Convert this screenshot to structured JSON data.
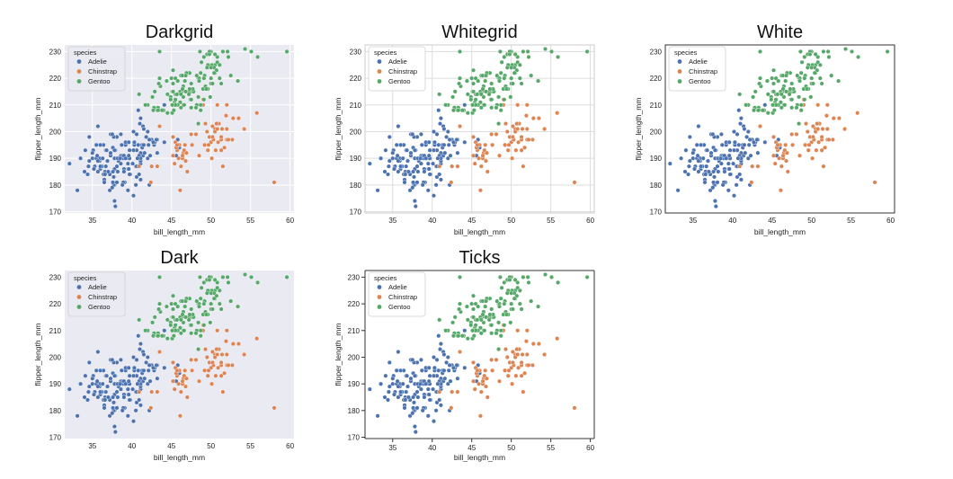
{
  "species_colors": {
    "Adelie": "#4c72b0",
    "Chinstrap": "#dd8452",
    "Gentoo": "#55a868"
  },
  "species": {
    "Adelie": [
      [
        39.1,
        181
      ],
      [
        39.5,
        186
      ],
      [
        40.3,
        195
      ],
      [
        36.7,
        193
      ],
      [
        39.3,
        190
      ],
      [
        38.9,
        181
      ],
      [
        39.2,
        195
      ],
      [
        34.1,
        193
      ],
      [
        42,
        190
      ],
      [
        37.8,
        186
      ],
      [
        37.8,
        180
      ],
      [
        41.1,
        182
      ],
      [
        38.6,
        191
      ],
      [
        34.6,
        198
      ],
      [
        36.6,
        185
      ],
      [
        38.7,
        195
      ],
      [
        42.5,
        197
      ],
      [
        34.4,
        184
      ],
      [
        46,
        194
      ],
      [
        37.8,
        174
      ],
      [
        37.7,
        180
      ],
      [
        35.9,
        189
      ],
      [
        38.2,
        185
      ],
      [
        38.8,
        180
      ],
      [
        35.3,
        187
      ],
      [
        40.6,
        183
      ],
      [
        40.5,
        187
      ],
      [
        37.9,
        172
      ],
      [
        40.5,
        180
      ],
      [
        39.5,
        178
      ],
      [
        37.2,
        178
      ],
      [
        39.5,
        188
      ],
      [
        40.9,
        184
      ],
      [
        36.4,
        195
      ],
      [
        39.2,
        196
      ],
      [
        38.8,
        190
      ],
      [
        42.2,
        180
      ],
      [
        37.6,
        181
      ],
      [
        39.8,
        184
      ],
      [
        36.5,
        182
      ],
      [
        40.8,
        195
      ],
      [
        36,
        186
      ],
      [
        44.1,
        196
      ],
      [
        37,
        185
      ],
      [
        39.6,
        190
      ],
      [
        41.1,
        182
      ],
      [
        37.5,
        179
      ],
      [
        42.3,
        191
      ],
      [
        39.6,
        186
      ],
      [
        40.1,
        188
      ],
      [
        35,
        190
      ],
      [
        42,
        200
      ],
      [
        34.5,
        187
      ],
      [
        41.4,
        191
      ],
      [
        39,
        186
      ],
      [
        40.6,
        193
      ],
      [
        36.5,
        181
      ],
      [
        37.6,
        194
      ],
      [
        35.7,
        185
      ],
      [
        41.3,
        195
      ],
      [
        37.6,
        185
      ],
      [
        41.1,
        192
      ],
      [
        36.4,
        184
      ],
      [
        41.6,
        192
      ],
      [
        35.5,
        195
      ],
      [
        41.1,
        188
      ],
      [
        35.9,
        190
      ],
      [
        41.8,
        198
      ],
      [
        33.5,
        190
      ],
      [
        39.7,
        190
      ],
      [
        39.6,
        196
      ],
      [
        45.8,
        197
      ],
      [
        35.5,
        190
      ],
      [
        42.8,
        195
      ],
      [
        40.9,
        191
      ],
      [
        37.2,
        184
      ],
      [
        36.2,
        187
      ],
      [
        42.1,
        195
      ],
      [
        34.6,
        189
      ],
      [
        42.9,
        196
      ],
      [
        36.7,
        187
      ],
      [
        35.1,
        193
      ],
      [
        37.3,
        191
      ],
      [
        41.3,
        194
      ],
      [
        36.3,
        190
      ],
      [
        36.9,
        189
      ],
      [
        38.3,
        189
      ],
      [
        38.9,
        190
      ],
      [
        35.7,
        202
      ],
      [
        41.1,
        205
      ],
      [
        34,
        185
      ],
      [
        39.6,
        186
      ],
      [
        36.2,
        187
      ],
      [
        40.8,
        208
      ],
      [
        38.1,
        190
      ],
      [
        40.3,
        196
      ],
      [
        33.1,
        178
      ],
      [
        43.2,
        192
      ],
      [
        35,
        192
      ],
      [
        41,
        203
      ],
      [
        37.7,
        183
      ],
      [
        37.8,
        190
      ],
      [
        37.9,
        193
      ],
      [
        39.7,
        184
      ],
      [
        38.6,
        199
      ],
      [
        38.2,
        190
      ],
      [
        38.1,
        181
      ],
      [
        43.2,
        197
      ],
      [
        38.1,
        198
      ],
      [
        45.6,
        191
      ],
      [
        39.7,
        193
      ],
      [
        42.2,
        197
      ],
      [
        39.6,
        191
      ],
      [
        42.7,
        196
      ],
      [
        38.6,
        188
      ],
      [
        37.3,
        199
      ],
      [
        35.7,
        189
      ],
      [
        41.1,
        189
      ],
      [
        36.2,
        187
      ],
      [
        37.7,
        198
      ],
      [
        40.2,
        176
      ],
      [
        41.4,
        202
      ],
      [
        35.2,
        186
      ],
      [
        40.6,
        199
      ],
      [
        38.8,
        191
      ],
      [
        41.5,
        195
      ],
      [
        39,
        191
      ],
      [
        44.1,
        210
      ],
      [
        38.5,
        190
      ],
      [
        43.1,
        197
      ],
      [
        36.8,
        193
      ],
      [
        37.5,
        199
      ],
      [
        38.1,
        187
      ],
      [
        41.1,
        190
      ],
      [
        35.6,
        191
      ],
      [
        40.2,
        200
      ],
      [
        37,
        185
      ],
      [
        39.7,
        193
      ],
      [
        40.2,
        193
      ],
      [
        40.6,
        187
      ],
      [
        32.1,
        188
      ],
      [
        40.7,
        190
      ],
      [
        37.3,
        192
      ],
      [
        39,
        185
      ],
      [
        39.2,
        190
      ],
      [
        36.6,
        184
      ],
      [
        36,
        195
      ],
      [
        37.8,
        193
      ],
      [
        36,
        187
      ],
      [
        41.5,
        201
      ]
    ],
    "Chinstrap": [
      [
        46.5,
        192
      ],
      [
        50,
        196
      ],
      [
        51.3,
        193
      ],
      [
        45.4,
        188
      ],
      [
        52.7,
        197
      ],
      [
        45.2,
        198
      ],
      [
        46.1,
        178
      ],
      [
        51.3,
        197
      ],
      [
        46,
        195
      ],
      [
        51.3,
        198
      ],
      [
        46.6,
        193
      ],
      [
        51.7,
        194
      ],
      [
        47,
        185
      ],
      [
        52,
        201
      ],
      [
        45.9,
        190
      ],
      [
        50.5,
        201
      ],
      [
        50.3,
        197
      ],
      [
        58,
        181
      ],
      [
        46.4,
        190
      ],
      [
        49.2,
        195
      ],
      [
        42.4,
        181
      ],
      [
        48.5,
        191
      ],
      [
        43.2,
        187
      ],
      [
        50.6,
        193
      ],
      [
        46.7,
        195
      ],
      [
        52,
        197
      ],
      [
        50.5,
        200
      ],
      [
        49.5,
        200
      ],
      [
        46.4,
        191
      ],
      [
        52.8,
        205
      ],
      [
        40.9,
        187
      ],
      [
        54.2,
        201
      ],
      [
        42.5,
        187
      ],
      [
        51,
        203
      ],
      [
        49.7,
        195
      ],
      [
        47.5,
        199
      ],
      [
        47.6,
        195
      ],
      [
        52,
        210
      ],
      [
        46.9,
        192
      ],
      [
        53.5,
        205
      ],
      [
        49,
        210
      ],
      [
        46.2,
        187
      ],
      [
        50.9,
        196
      ],
      [
        45.5,
        196
      ],
      [
        50.9,
        196
      ],
      [
        50.8,
        201
      ],
      [
        50.1,
        190
      ],
      [
        49,
        212
      ],
      [
        51.5,
        187
      ],
      [
        49.8,
        198
      ],
      [
        48.1,
        199
      ],
      [
        51.4,
        201
      ],
      [
        45.7,
        193
      ],
      [
        50.7,
        203
      ],
      [
        42.5,
        187
      ],
      [
        52.2,
        197
      ],
      [
        45.2,
        191
      ],
      [
        49.3,
        203
      ],
      [
        50.2,
        202
      ],
      [
        45.6,
        194
      ],
      [
        51.9,
        206
      ],
      [
        46.8,
        189
      ],
      [
        45.7,
        195
      ],
      [
        55.8,
        207
      ],
      [
        43.5,
        202
      ],
      [
        49.6,
        193
      ],
      [
        50.8,
        210
      ],
      [
        50.2,
        198
      ]
    ],
    "Gentoo": [
      [
        46.1,
        211
      ],
      [
        50,
        230
      ],
      [
        48.7,
        210
      ],
      [
        50,
        218
      ],
      [
        47.6,
        215
      ],
      [
        46.5,
        210
      ],
      [
        45.4,
        211
      ],
      [
        46.7,
        219
      ],
      [
        43.3,
        209
      ],
      [
        46.8,
        215
      ],
      [
        40.9,
        214
      ],
      [
        49,
        216
      ],
      [
        45.5,
        214
      ],
      [
        48.4,
        213
      ],
      [
        45.8,
        210
      ],
      [
        49.3,
        217
      ],
      [
        42,
        210
      ],
      [
        49.2,
        221
      ],
      [
        46.2,
        209
      ],
      [
        48.7,
        222
      ],
      [
        50.2,
        218
      ],
      [
        45.1,
        215
      ],
      [
        46.5,
        213
      ],
      [
        46.3,
        215
      ],
      [
        42.9,
        215
      ],
      [
        46.1,
        215
      ],
      [
        47.8,
        215
      ],
      [
        48.2,
        210
      ],
      [
        50,
        220
      ],
      [
        47.3,
        222
      ],
      [
        42.8,
        209
      ],
      [
        45.1,
        207
      ],
      [
        59.6,
        230
      ],
      [
        49.1,
        220
      ],
      [
        48.4,
        220
      ],
      [
        42.6,
        213
      ],
      [
        44.4,
        219
      ],
      [
        44,
        208
      ],
      [
        48.7,
        208
      ],
      [
        42.7,
        208
      ],
      [
        49.6,
        225
      ],
      [
        45.3,
        210
      ],
      [
        49.6,
        216
      ],
      [
        50.5,
        222
      ],
      [
        43.6,
        217
      ],
      [
        45.5,
        210
      ],
      [
        50.5,
        225
      ],
      [
        44.9,
        213
      ],
      [
        45.2,
        215
      ],
      [
        46.6,
        210
      ],
      [
        48.5,
        220
      ],
      [
        45.1,
        210
      ],
      [
        50.1,
        225
      ],
      [
        46.5,
        217
      ],
      [
        45,
        220
      ],
      [
        43.8,
        208
      ],
      [
        45.5,
        220
      ],
      [
        43.2,
        208
      ],
      [
        50.4,
        224
      ],
      [
        45.3,
        208
      ],
      [
        46.2,
        221
      ],
      [
        45.7,
        214
      ],
      [
        54.3,
        231
      ],
      [
        45.8,
        219
      ],
      [
        49.8,
        230
      ],
      [
        46.2,
        214
      ],
      [
        49.5,
        229
      ],
      [
        43.5,
        220
      ],
      [
        50.7,
        223
      ],
      [
        47.7,
        216
      ],
      [
        46.4,
        221
      ],
      [
        48.2,
        221
      ],
      [
        46.5,
        217
      ],
      [
        46.4,
        216
      ],
      [
        48.6,
        230
      ],
      [
        47.5,
        209
      ],
      [
        51.1,
        220
      ],
      [
        45.2,
        215
      ],
      [
        45.2,
        223
      ],
      [
        49.1,
        212
      ],
      [
        52.5,
        221
      ],
      [
        47.4,
        212
      ],
      [
        50,
        224
      ],
      [
        44.9,
        212
      ],
      [
        50.8,
        228
      ],
      [
        43.4,
        218
      ],
      [
        51.3,
        218
      ],
      [
        47.5,
        212
      ],
      [
        52.1,
        230
      ],
      [
        47.5,
        218
      ],
      [
        52.2,
        228
      ],
      [
        45.5,
        212
      ],
      [
        49.5,
        224
      ],
      [
        44.5,
        214
      ],
      [
        50.8,
        226
      ],
      [
        49.4,
        216
      ],
      [
        46.9,
        222
      ],
      [
        48.4,
        203
      ],
      [
        51.1,
        225
      ],
      [
        48.5,
        219
      ],
      [
        55.9,
        228
      ],
      [
        47.2,
        215
      ],
      [
        49.1,
        228
      ],
      [
        47.3,
        216
      ],
      [
        46.8,
        215
      ],
      [
        41.7,
        210
      ],
      [
        53.4,
        219
      ],
      [
        43.3,
        208
      ],
      [
        48.1,
        209
      ],
      [
        50.5,
        229
      ],
      [
        49.8,
        229
      ],
      [
        43.5,
        230
      ],
      [
        51.5,
        230
      ],
      [
        46.2,
        214
      ],
      [
        55.1,
        230
      ],
      [
        44.5,
        207
      ],
      [
        48.8,
        226
      ],
      [
        47.2,
        214
      ],
      [
        46.8,
        221
      ],
      [
        50.4,
        222
      ],
      [
        45.2,
        218
      ],
      [
        49.9,
        213
      ]
    ]
  },
  "chart_data": [
    {
      "type": "scatter",
      "style": "darkgrid",
      "title": "Darkgrid",
      "xlabel": "bill_length_mm",
      "ylabel": "flipper_length_mm",
      "xlim": [
        31.5,
        60.5
      ],
      "ylim": [
        169.5,
        232.5
      ],
      "xticks": [
        35,
        40,
        45,
        50,
        55,
        60
      ],
      "yticks": [
        170,
        180,
        190,
        200,
        210,
        220,
        230
      ],
      "grid": true,
      "background": "#eaeaf2",
      "spines": false,
      "ticks": false,
      "legend": {
        "title": "species",
        "placement": "top-left",
        "entries": [
          "Adelie",
          "Chinstrap",
          "Gentoo"
        ]
      },
      "series_source": "species"
    },
    {
      "type": "scatter",
      "style": "whitegrid",
      "title": "Whitegrid",
      "xlabel": "bill_length_mm",
      "ylabel": "flipper_length_mm",
      "xlim": [
        31.5,
        60.5
      ],
      "ylim": [
        169.5,
        232.5
      ],
      "xticks": [
        35,
        40,
        45,
        50,
        55,
        60
      ],
      "yticks": [
        170,
        180,
        190,
        200,
        210,
        220,
        230
      ],
      "grid": true,
      "background": "#ffffff",
      "spines": true,
      "ticks": false,
      "legend": {
        "title": "species",
        "placement": "top-left",
        "entries": [
          "Adelie",
          "Chinstrap",
          "Gentoo"
        ]
      },
      "series_source": "species"
    },
    {
      "type": "scatter",
      "style": "white",
      "title": "White",
      "xlabel": "bill_length_mm",
      "ylabel": "flipper_length_mm",
      "xlim": [
        31.5,
        60.5
      ],
      "ylim": [
        169.5,
        232.5
      ],
      "xticks": [
        35,
        40,
        45,
        50,
        55,
        60
      ],
      "yticks": [
        170,
        180,
        190,
        200,
        210,
        220,
        230
      ],
      "grid": false,
      "background": "#ffffff",
      "spines": true,
      "ticks": false,
      "legend": {
        "title": "species",
        "placement": "top-left",
        "entries": [
          "Adelie",
          "Chinstrap",
          "Gentoo"
        ]
      },
      "series_source": "species"
    },
    {
      "type": "scatter",
      "style": "dark",
      "title": "Dark",
      "xlabel": "bill_length_mm",
      "ylabel": "flipper_length_mm",
      "xlim": [
        31.5,
        60.5
      ],
      "ylim": [
        169.5,
        232.5
      ],
      "xticks": [
        35,
        40,
        45,
        50,
        55,
        60
      ],
      "yticks": [
        170,
        180,
        190,
        200,
        210,
        220,
        230
      ],
      "grid": false,
      "background": "#eaeaf2",
      "spines": false,
      "ticks": false,
      "legend": {
        "title": "species",
        "placement": "top-left",
        "entries": [
          "Adelie",
          "Chinstrap",
          "Gentoo"
        ]
      },
      "series_source": "species"
    },
    {
      "type": "scatter",
      "style": "ticks",
      "title": "Ticks",
      "xlabel": "bill_length_mm",
      "ylabel": "flipper_length_mm",
      "xlim": [
        31.5,
        60.5
      ],
      "ylim": [
        169.5,
        232.5
      ],
      "xticks": [
        35,
        40,
        45,
        50,
        55,
        60
      ],
      "yticks": [
        170,
        180,
        190,
        200,
        210,
        220,
        230
      ],
      "grid": false,
      "background": "#ffffff",
      "spines": true,
      "ticks": true,
      "legend": {
        "title": "species",
        "placement": "top-left",
        "entries": [
          "Adelie",
          "Chinstrap",
          "Gentoo"
        ]
      },
      "series_source": "species"
    }
  ]
}
